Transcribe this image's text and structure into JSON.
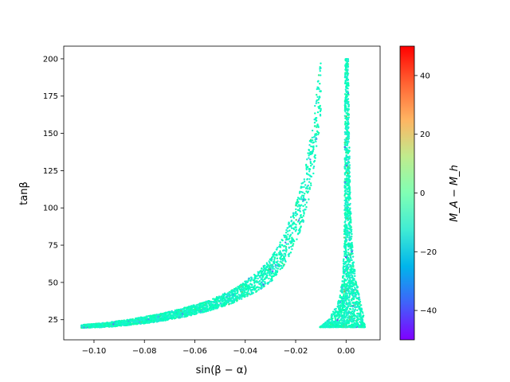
{
  "chart_data": {
    "type": "scatter",
    "title": "",
    "xlabel": "sin(β − α)",
    "ylabel": "tanβ",
    "xlim": [
      -0.112,
      0.0135
    ],
    "ylim": [
      11.5,
      208.5
    ],
    "x_ticks": [
      -0.1,
      -0.08,
      -0.06,
      -0.04,
      -0.02,
      0.0
    ],
    "x_tick_labels": [
      "−0.10",
      "−0.08",
      "−0.06",
      "−0.04",
      "−0.02",
      "0.00"
    ],
    "y_ticks": [
      25,
      50,
      75,
      100,
      125,
      150,
      175,
      200
    ],
    "y_tick_labels": [
      "25",
      "50",
      "75",
      "100",
      "125",
      "150",
      "175",
      "200"
    ],
    "grid": false,
    "colorbar": {
      "label": "M_A − M_h",
      "colormap": "rainbow",
      "range": [
        -50,
        50
      ],
      "ticks": [
        -40,
        -20,
        0,
        20,
        40
      ],
      "tick_labels": [
        "−40",
        "−20",
        "0",
        "20",
        "40"
      ]
    },
    "series": [
      {
        "region": "left-branch",
        "color_value_range": [
          -45,
          25
        ],
        "curve": [
          {
            "x": -0.105,
            "y_low": 19.5,
            "y_high": 21.5
          },
          {
            "x": -0.095,
            "y_low": 20.0,
            "y_high": 23.0
          },
          {
            "x": -0.085,
            "y_low": 21.5,
            "y_high": 25.5
          },
          {
            "x": -0.075,
            "y_low": 23.5,
            "y_high": 28.5
          },
          {
            "x": -0.065,
            "y_low": 26.5,
            "y_high": 32.5
          },
          {
            "x": -0.055,
            "y_low": 30.5,
            "y_high": 37.5
          },
          {
            "x": -0.045,
            "y_low": 36.0,
            "y_high": 45.0
          },
          {
            "x": -0.035,
            "y_low": 44.0,
            "y_high": 57.0
          },
          {
            "x": -0.03,
            "y_low": 50.0,
            "y_high": 66.0
          },
          {
            "x": -0.025,
            "y_low": 60.0,
            "y_high": 80.0
          },
          {
            "x": -0.02,
            "y_low": 76.0,
            "y_high": 102.0
          },
          {
            "x": -0.017,
            "y_low": 90.0,
            "y_high": 120.0
          },
          {
            "x": -0.015,
            "y_low": 104.0,
            "y_high": 138.0
          },
          {
            "x": -0.013,
            "y_low": 122.0,
            "y_high": 160.0
          },
          {
            "x": -0.0115,
            "y_low": 140.0,
            "y_high": 185.0
          },
          {
            "x": -0.01,
            "y_low": 160.0,
            "y_high": 200.0
          }
        ]
      },
      {
        "region": "right-spike",
        "color_value_range": [
          -45,
          25
        ],
        "profile": [
          {
            "y": 20,
            "x_min": -0.0105,
            "x_max": 0.0075
          },
          {
            "y": 25,
            "x_min": -0.007,
            "x_max": 0.0072
          },
          {
            "y": 35,
            "x_min": -0.0035,
            "x_max": 0.006
          },
          {
            "y": 50,
            "x_min": -0.0015,
            "x_max": 0.0042
          },
          {
            "y": 75,
            "x_min": -0.0008,
            "x_max": 0.0025
          },
          {
            "y": 100,
            "x_min": -0.0006,
            "x_max": 0.0018
          },
          {
            "y": 150,
            "x_min": -0.0005,
            "x_max": 0.0012
          },
          {
            "y": 200,
            "x_min": -0.0004,
            "x_max": 0.0009
          }
        ]
      }
    ]
  }
}
